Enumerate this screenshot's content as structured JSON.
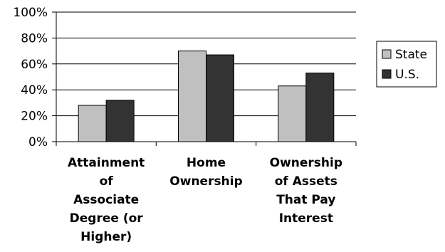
{
  "chart_data": {
    "type": "bar",
    "categories": [
      [
        "Attainment",
        "of",
        "Associate",
        "Degree (or",
        "Higher)"
      ],
      [
        "Home",
        "Ownership"
      ],
      [
        "Ownership",
        "of Assets",
        "That Pay",
        "Interest"
      ]
    ],
    "series": [
      {
        "name": "State",
        "values": [
          28,
          70,
          43
        ],
        "color": "#c0c0c0"
      },
      {
        "name": "U.S.",
        "values": [
          32,
          67,
          53
        ],
        "color": "#333333"
      }
    ],
    "ylim": [
      0,
      100
    ],
    "yticks": [
      "0%",
      "20%",
      "40%",
      "60%",
      "80%",
      "100%"
    ],
    "grid": true,
    "legend_position": "right",
    "title": "",
    "xlabel": "",
    "ylabel": ""
  }
}
